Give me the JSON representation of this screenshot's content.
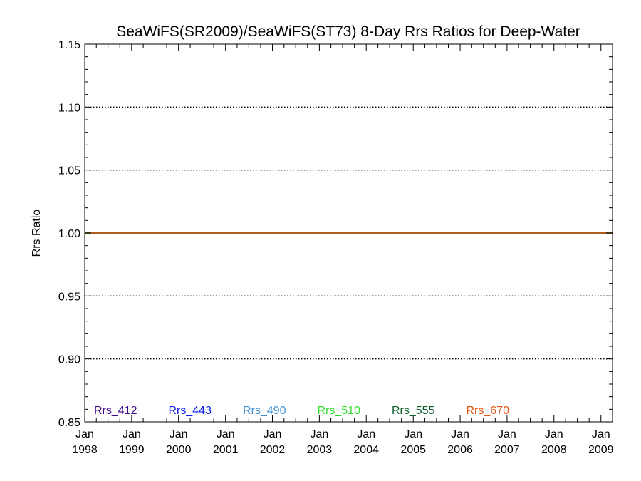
{
  "chart_data": {
    "type": "line",
    "title": "SeaWiFS(SR2009)/SeaWiFS(ST73) 8-Day Rrs Ratios for Deep-Water",
    "xlabel": "",
    "ylabel": "Rrs Ratio",
    "ylim": [
      0.85,
      1.15
    ],
    "yticks": [
      0.85,
      0.9,
      0.95,
      1.0,
      1.05,
      1.1,
      1.15
    ],
    "ytick_labels": [
      "0.85",
      "0.90",
      "0.95",
      "1.00",
      "1.05",
      "1.10",
      "1.15"
    ],
    "xlim": [
      "1998-01-01",
      "2009-04-01"
    ],
    "xticks": [
      "1998-01-01",
      "1999-01-01",
      "2000-01-01",
      "2001-01-01",
      "2002-01-01",
      "2003-01-01",
      "2004-01-01",
      "2005-01-01",
      "2006-01-01",
      "2007-01-01",
      "2008-01-01",
      "2009-01-01"
    ],
    "xtick_labels": [
      [
        "Jan",
        "1998"
      ],
      [
        "Jan",
        "1999"
      ],
      [
        "Jan",
        "2000"
      ],
      [
        "Jan",
        "2001"
      ],
      [
        "Jan",
        "2002"
      ],
      [
        "Jan",
        "2003"
      ],
      [
        "Jan",
        "2004"
      ],
      [
        "Jan",
        "2005"
      ],
      [
        "Jan",
        "2006"
      ],
      [
        "Jan",
        "2007"
      ],
      [
        "Jan",
        "2008"
      ],
      [
        "Jan",
        "2009"
      ]
    ],
    "grid": "dotted-horizontal",
    "legend_placement": "bottom-inside",
    "series": [
      {
        "name": "Rrs_412",
        "color": "#3d0a8a",
        "x": [
          "1998-01-01",
          "2009-04-01"
        ],
        "y": [
          1.0,
          1.0
        ]
      },
      {
        "name": "Rrs_443",
        "color": "#0a1ee6",
        "x": [
          "1998-01-01",
          "2009-04-01"
        ],
        "y": [
          1.0,
          1.0
        ]
      },
      {
        "name": "Rrs_490",
        "color": "#3f8fd2",
        "x": [
          "1998-01-01",
          "2009-04-01"
        ],
        "y": [
          1.0,
          1.0
        ]
      },
      {
        "name": "Rrs_510",
        "color": "#2ee02a",
        "x": [
          "1998-01-01",
          "2009-04-01"
        ],
        "y": [
          1.0,
          1.0
        ]
      },
      {
        "name": "Rrs_555",
        "color": "#0b5e2a",
        "x": [
          "1998-01-01",
          "2009-04-01"
        ],
        "y": [
          1.0,
          1.0
        ]
      },
      {
        "name": "Rrs_670",
        "color": "#e0530f",
        "x": [
          "1998-01-01",
          "2009-04-01"
        ],
        "y": [
          1.0,
          1.0
        ]
      }
    ]
  }
}
